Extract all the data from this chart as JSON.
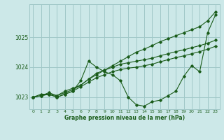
{
  "bg_color": "#cce8e8",
  "grid_color": "#a0c8c8",
  "line_color": "#1a5c1a",
  "xlabel": "Graphe pression niveau de la mer (hPa)",
  "xlim": [
    -0.5,
    23.5
  ],
  "ylim": [
    1022.6,
    1026.1
  ],
  "yticks": [
    1023,
    1024,
    1025
  ],
  "xticks": [
    0,
    1,
    2,
    3,
    4,
    5,
    6,
    7,
    8,
    9,
    10,
    11,
    12,
    13,
    14,
    15,
    16,
    17,
    18,
    19,
    20,
    21,
    22,
    23
  ],
  "series": [
    {
      "x": [
        0,
        1,
        2,
        3,
        4,
        5,
        6,
        7,
        8,
        9,
        10,
        11,
        12,
        13,
        14,
        15,
        16,
        17,
        18,
        19,
        20,
        21,
        22,
        23
      ],
      "y": [
        1023.0,
        1023.1,
        1023.1,
        1023.05,
        1023.2,
        1023.3,
        1023.4,
        1023.6,
        1023.75,
        1023.9,
        1024.05,
        1024.2,
        1024.35,
        1024.5,
        1024.6,
        1024.72,
        1024.85,
        1024.95,
        1025.05,
        1025.15,
        1025.25,
        1025.35,
        1025.55,
        1025.85
      ]
    },
    {
      "x": [
        0,
        1,
        2,
        3,
        4,
        5,
        6,
        7,
        8,
        9,
        10,
        11,
        12,
        13,
        14,
        15,
        16,
        17,
        18,
        19,
        20,
        21,
        22,
        23
      ],
      "y": [
        1023.0,
        1023.05,
        1023.1,
        1023.0,
        1023.1,
        1023.2,
        1023.55,
        1024.2,
        1024.0,
        1023.85,
        1023.75,
        1023.55,
        1023.0,
        1022.75,
        1022.7,
        1022.85,
        1022.9,
        1023.05,
        1023.2,
        1023.7,
        1024.05,
        1023.85,
        1025.15,
        1025.75
      ]
    },
    {
      "x": [
        0,
        1,
        2,
        3,
        4,
        5,
        6,
        7,
        8,
        9,
        10,
        11,
        12,
        13,
        14,
        15,
        16,
        17,
        18,
        19,
        20,
        21,
        22,
        23
      ],
      "y": [
        1023.0,
        1023.05,
        1023.1,
        1023.0,
        1023.1,
        1023.2,
        1023.35,
        1023.5,
        1023.65,
        1023.75,
        1023.85,
        1023.92,
        1023.97,
        1024.0,
        1024.05,
        1024.1,
        1024.18,
        1024.25,
        1024.32,
        1024.38,
        1024.45,
        1024.52,
        1024.6,
        1024.7
      ]
    },
    {
      "x": [
        0,
        1,
        2,
        3,
        4,
        5,
        6,
        7,
        8,
        9,
        10,
        11,
        12,
        13,
        14,
        15,
        16,
        17,
        18,
        19,
        20,
        21,
        22,
        23
      ],
      "y": [
        1023.0,
        1023.05,
        1023.15,
        1023.05,
        1023.15,
        1023.25,
        1023.4,
        1023.6,
        1023.8,
        1023.9,
        1024.0,
        1024.1,
        1024.15,
        1024.2,
        1024.25,
        1024.3,
        1024.38,
        1024.45,
        1024.52,
        1024.58,
        1024.65,
        1024.72,
        1024.8,
        1024.9
      ]
    }
  ]
}
